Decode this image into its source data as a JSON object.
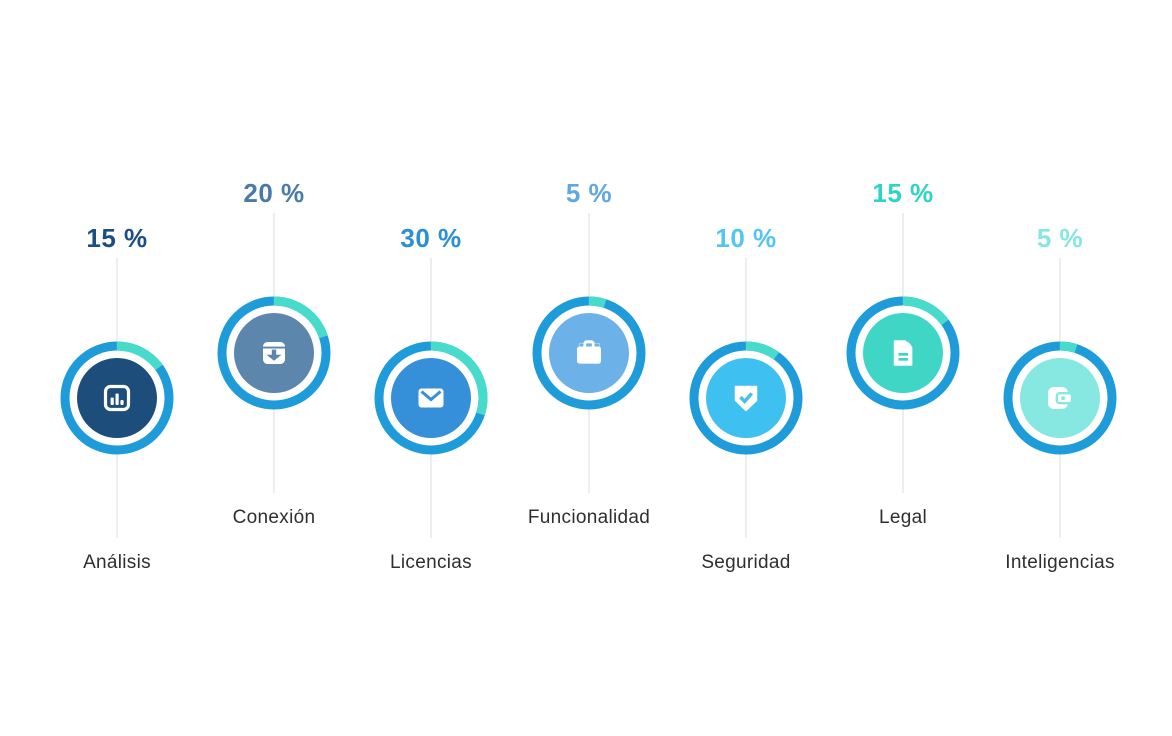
{
  "page": {
    "background": "#ffffff"
  },
  "styles": {
    "ring_color": "#1e9bd9",
    "arc_color": "#46dbca",
    "connector_color": "#dcdcdc",
    "category_label_color": "#2f2f2f"
  },
  "items": [
    {
      "id": "analisis",
      "label": "Análisis",
      "percent_label": "15 %",
      "value": 15,
      "icon": "bar-chart-icon",
      "circle_color": "#1d4d7a",
      "percent_color": "#1c4e84"
    },
    {
      "id": "conexion",
      "label": "Conexión",
      "percent_label": "20 %",
      "value": 20,
      "icon": "inbox-archive-icon",
      "circle_color": "#5d86ac",
      "percent_color": "#4a7aa8"
    },
    {
      "id": "licencias",
      "label": "Licencias",
      "percent_label": "30 %",
      "value": 30,
      "icon": "envelope-icon",
      "circle_color": "#3590d9",
      "percent_color": "#2b8fd8"
    },
    {
      "id": "funcionalidad",
      "label": "Funcionalidad",
      "percent_label": "5 %",
      "value": 5,
      "icon": "briefcase-icon",
      "circle_color": "#6cb2e8",
      "percent_color": "#61a8e2"
    },
    {
      "id": "seguridad",
      "label": "Seguridad",
      "percent_label": "10 %",
      "value": 10,
      "icon": "shield-check-icon",
      "circle_color": "#3ec1f0",
      "percent_color": "#53c5f1"
    },
    {
      "id": "legal",
      "label": "Legal",
      "percent_label": "15 %",
      "value": 15,
      "icon": "document-icon",
      "circle_color": "#3fd6c6",
      "percent_color": "#2dd3c5"
    },
    {
      "id": "inteligencias",
      "label": "Inteligencias",
      "percent_label": "5 %",
      "value": 5,
      "icon": "wallet-icon",
      "circle_color": "#86e8e1",
      "percent_color": "#85e7e0"
    }
  ],
  "chart_data": {
    "type": "pie",
    "title": "",
    "categories": [
      "Análisis",
      "Conexión",
      "Licencias",
      "Funcionalidad",
      "Seguridad",
      "Legal",
      "Inteligencias"
    ],
    "values": [
      15,
      20,
      30,
      5,
      10,
      15,
      5
    ],
    "unit": "%",
    "annotations": [
      "15 %",
      "20 %",
      "30 %",
      "5 %",
      "10 %",
      "15 %",
      "5 %"
    ],
    "legend_position": "none",
    "layout_hint": "seven percentage progress rings in a row, alternating high/low, teal arc shows percent of ring starting at 12 o'clock clockwise"
  }
}
